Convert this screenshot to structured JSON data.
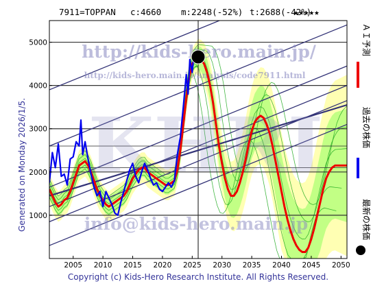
{
  "header": {
    "ticker": "7911=TOPPAN",
    "current": "c:4660",
    "mid": "m:2248(-52%)",
    "target": "t:2688(-42%)",
    "stars": "★★★★★"
  },
  "side_label": "Generated on Monday 2026/1/5.",
  "footer": "Copyright (c) Kids-Hero Research Institute. All Rights Reserved.",
  "watermarks": {
    "url_main": "http://kids-hero.main.jp/",
    "url_analysis": "http://kids-hero.main.jp/analysis/code7911.html",
    "email": "info@kids-hero.main.jp",
    "logo": "KHRI"
  },
  "legend": {
    "forecast": "ＡＩ予測",
    "past": "過去の株価",
    "latest": "最新の株価"
  },
  "colors": {
    "forecast": "#ee0000",
    "past": "#0000ee",
    "band_light": "#ffff99",
    "band_green": "#99ff66",
    "band_line": "#22aa22",
    "trend": "#333377",
    "grid": "#333333",
    "dot": "#000000"
  },
  "chart_data": {
    "type": "line",
    "xlim": [
      2001,
      2051
    ],
    "ylim": [
      0,
      5500
    ],
    "x_ticks": [
      2005,
      2010,
      2015,
      2020,
      2025,
      2030,
      2035,
      2040,
      2045,
      2050
    ],
    "y_ticks": [
      1000,
      2000,
      3000,
      4000,
      5000
    ],
    "latest_point": {
      "x": 2026.0,
      "y": 4660
    },
    "series": [
      {
        "name": "過去の株価",
        "x": [
          2001.0,
          2001.5,
          2002.0,
          2002.5,
          2003.0,
          2003.5,
          2004.0,
          2004.5,
          2005.0,
          2005.5,
          2006.0,
          2006.3,
          2006.6,
          2007.0,
          2007.5,
          2008.0,
          2008.5,
          2009.0,
          2009.5,
          2010.0,
          2010.5,
          2011.0,
          2011.5,
          2012.0,
          2012.5,
          2013.0,
          2013.5,
          2014.0,
          2014.5,
          2015.0,
          2015.5,
          2016.0,
          2016.5,
          2017.0,
          2017.5,
          2018.0,
          2018.5,
          2019.0,
          2019.5,
          2020.0,
          2020.5,
          2021.0,
          2021.5,
          2022.0,
          2022.5,
          2023.0,
          2023.5,
          2024.0,
          2024.3,
          2024.6,
          2025.0,
          2025.3,
          2025.6,
          2026.0
        ],
        "values": [
          1750,
          2450,
          2100,
          2650,
          1900,
          1950,
          1700,
          2300,
          2350,
          2700,
          2600,
          3200,
          2400,
          2700,
          2300,
          1950,
          1650,
          1450,
          1550,
          1200,
          1550,
          1400,
          1250,
          1050,
          1000,
          1300,
          1550,
          1800,
          2050,
          2200,
          1900,
          1750,
          2000,
          2200,
          2050,
          1850,
          1700,
          1750,
          1600,
          1550,
          1650,
          1750,
          1650,
          1800,
          2400,
          2800,
          3500,
          4250,
          3800,
          4600,
          4300,
          4750,
          4600,
          4660
        ]
      },
      {
        "name": "ＡＩ予測",
        "x": [
          2001.0,
          2001.5,
          2002.0,
          2002.5,
          2003.0,
          2003.5,
          2004.0,
          2004.5,
          2005.0,
          2005.5,
          2006.0,
          2006.5,
          2007.0,
          2007.5,
          2008.0,
          2008.5,
          2009.0,
          2009.5,
          2010.0,
          2010.5,
          2011.0,
          2011.5,
          2012.0,
          2012.5,
          2013.0,
          2013.5,
          2014.0,
          2014.5,
          2015.0,
          2015.5,
          2016.0,
          2016.5,
          2017.0,
          2017.5,
          2018.0,
          2018.5,
          2019.0,
          2019.5,
          2020.0,
          2020.5,
          2021.0,
          2021.5,
          2022.0,
          2022.5,
          2023.0,
          2023.5,
          2024.0,
          2024.5,
          2025.0,
          2025.5,
          2026.0,
          2026.5,
          2027.0,
          2027.5,
          2028.0,
          2028.5,
          2029.0,
          2029.5,
          2030.0,
          2030.5,
          2031.0,
          2031.5,
          2032.0,
          2032.5,
          2033.0,
          2033.5,
          2034.0,
          2034.5,
          2035.0,
          2035.5,
          2036.0,
          2036.5,
          2037.0,
          2037.5,
          2038.0,
          2038.5,
          2039.0,
          2039.5,
          2040.0,
          2040.5,
          2041.0,
          2041.5,
          2042.0,
          2042.5,
          2043.0,
          2043.5,
          2044.0,
          2044.5,
          2045.0,
          2045.5,
          2046.0,
          2046.5,
          2047.0,
          2047.5,
          2048.0,
          2048.5,
          2049.0,
          2049.5,
          2050.0,
          2050.5,
          2051.0
        ],
        "values": [
          1600,
          1450,
          1300,
          1200,
          1250,
          1350,
          1400,
          1550,
          1750,
          1950,
          2150,
          2200,
          2250,
          2150,
          2000,
          1800,
          1600,
          1450,
          1350,
          1250,
          1200,
          1250,
          1300,
          1350,
          1400,
          1450,
          1550,
          1700,
          1850,
          1950,
          2050,
          2100,
          2100,
          2000,
          1950,
          1900,
          1850,
          1800,
          1750,
          1700,
          1700,
          1750,
          1800,
          2050,
          2500,
          3100,
          3700,
          4200,
          4500,
          4620,
          4660,
          4600,
          4500,
          4300,
          4000,
          3600,
          3100,
          2600,
          2200,
          1850,
          1600,
          1450,
          1450,
          1550,
          1750,
          2000,
          2300,
          2650,
          2950,
          3150,
          3250,
          3300,
          3250,
          3100,
          2900,
          2600,
          2250,
          1900,
          1550,
          1200,
          900,
          650,
          450,
          300,
          200,
          150,
          150,
          250,
          450,
          700,
          1000,
          1300,
          1600,
          1850,
          2000,
          2100,
          2150,
          2150,
          2150,
          2150,
          2150
        ]
      }
    ]
  }
}
